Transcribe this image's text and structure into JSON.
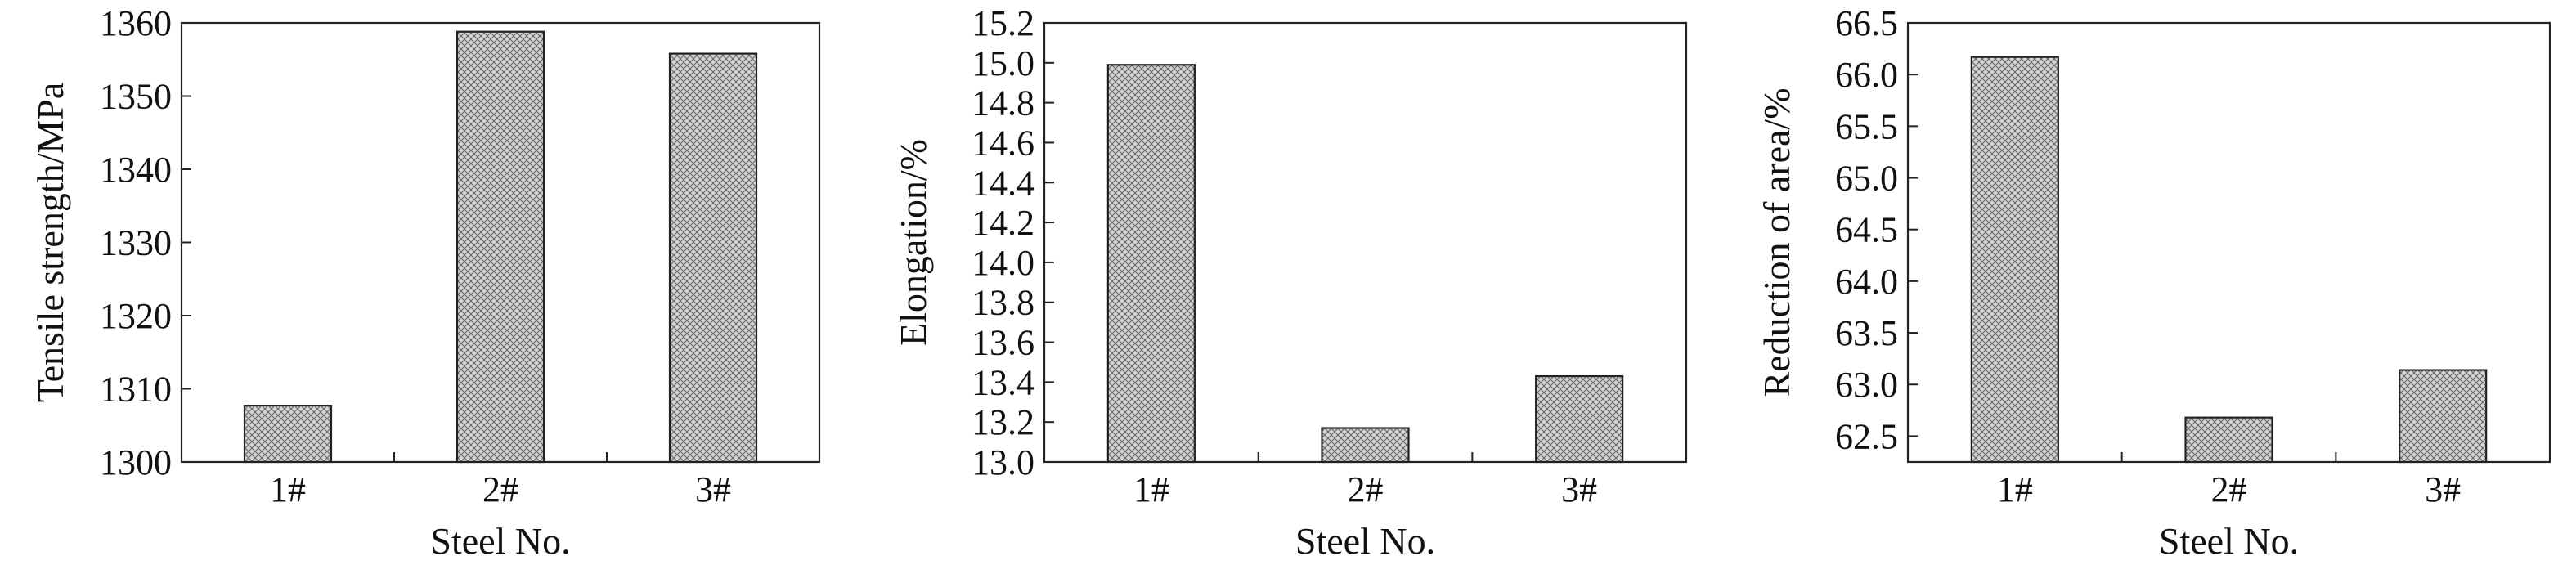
{
  "chart_data": [
    {
      "type": "bar",
      "categories": [
        "1#",
        "2#",
        "3#"
      ],
      "values": [
        1307.7,
        1358.8,
        1355.8
      ],
      "xlabel": "Steel No.",
      "ylabel": "Tensile strength/MPa",
      "ylim": [
        1300,
        1360
      ],
      "yticks": [
        1300,
        1310,
        1320,
        1330,
        1340,
        1350,
        1360
      ],
      "tick_decimals": 0,
      "grid": false,
      "bar_fill": "crosshatch"
    },
    {
      "type": "bar",
      "categories": [
        "1#",
        "2#",
        "3#"
      ],
      "values": [
        14.99,
        13.17,
        13.43
      ],
      "xlabel": "Steel No.",
      "ylabel": "Elongation/%",
      "ylim": [
        13.0,
        15.2
      ],
      "yticks": [
        13.0,
        13.2,
        13.4,
        13.6,
        13.8,
        14.0,
        14.2,
        14.4,
        14.6,
        14.8,
        15.0,
        15.2
      ],
      "tick_decimals": 1,
      "grid": false,
      "bar_fill": "crosshatch"
    },
    {
      "type": "bar",
      "categories": [
        "1#",
        "2#",
        "3#"
      ],
      "values": [
        66.17,
        62.68,
        63.14
      ],
      "xlabel": "Steel No.",
      "ylabel": "Reduction of area/%",
      "ylim": [
        62.25,
        66.5
      ],
      "yticks": [
        62.5,
        63.0,
        63.5,
        64.0,
        64.5,
        65.0,
        65.5,
        66.0,
        66.5
      ],
      "tick_decimals": 1,
      "grid": false,
      "bar_fill": "crosshatch"
    }
  ]
}
